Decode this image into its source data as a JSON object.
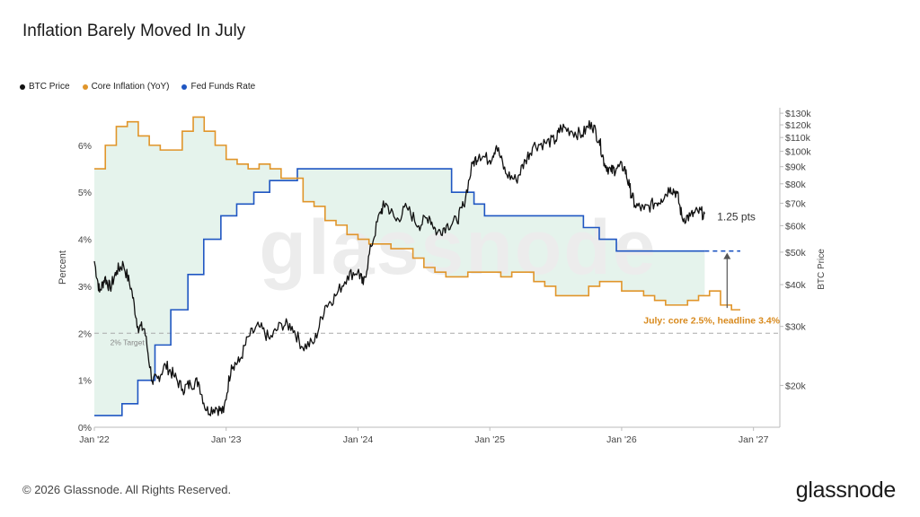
{
  "page": {
    "title": "Inflation Barely Moved In July",
    "footer": "© 2026 Glassnode. All Rights Reserved.",
    "brand": "glassnode",
    "watermark": "glassnode"
  },
  "chart_data": {
    "type": "line",
    "left_axis": {
      "label": "Percent",
      "ylim": [
        0,
        6.8
      ],
      "ticks": [
        0,
        1,
        2,
        3,
        4,
        5,
        6
      ],
      "tick_labels": [
        "0%",
        "1%",
        "2%",
        "3%",
        "4%",
        "5%",
        "6%"
      ]
    },
    "right_axis": {
      "label": "BTC Price",
      "scale": "log",
      "ylim": [
        15000,
        135000
      ],
      "ticks": [
        20000,
        30000,
        40000,
        50000,
        60000,
        70000,
        80000,
        90000,
        100000,
        110000,
        120000,
        130000
      ],
      "tick_labels": [
        "$20k",
        "$30k",
        "$40k",
        "$50k",
        "$60k",
        "$70k",
        "$80k",
        "$90k",
        "$100k",
        "$110k",
        "$120k",
        "$130k"
      ]
    },
    "x_axis": {
      "range": [
        2022.0,
        2027.2
      ],
      "ticks": [
        2022,
        2023,
        2024,
        2025,
        2026,
        2027
      ],
      "tick_labels": [
        "Jan '22",
        "Jan '23",
        "Jan '24",
        "Jan '25",
        "Jan '26",
        "Jan '27"
      ]
    },
    "series": [
      {
        "name": "BTC Price",
        "color": "#111111",
        "axis": "right",
        "points": [
          [
            2022.0,
            47000
          ],
          [
            2022.04,
            38000
          ],
          [
            2022.08,
            42000
          ],
          [
            2022.12,
            39000
          ],
          [
            2022.17,
            44000
          ],
          [
            2022.22,
            46000
          ],
          [
            2022.28,
            39000
          ],
          [
            2022.33,
            30000
          ],
          [
            2022.38,
            29500
          ],
          [
            2022.44,
            20500
          ],
          [
            2022.48,
            21000
          ],
          [
            2022.54,
            23000
          ],
          [
            2022.6,
            21500
          ],
          [
            2022.67,
            19500
          ],
          [
            2022.73,
            20200
          ],
          [
            2022.79,
            20500
          ],
          [
            2022.85,
            16800
          ],
          [
            2022.92,
            17200
          ],
          [
            2022.98,
            16600
          ],
          [
            2023.04,
            23000
          ],
          [
            2023.1,
            23500
          ],
          [
            2023.17,
            28000
          ],
          [
            2023.25,
            30000
          ],
          [
            2023.33,
            27500
          ],
          [
            2023.42,
            30500
          ],
          [
            2023.5,
            30000
          ],
          [
            2023.58,
            26000
          ],
          [
            2023.67,
            27000
          ],
          [
            2023.75,
            34500
          ],
          [
            2023.83,
            37000
          ],
          [
            2023.92,
            42500
          ],
          [
            2024.0,
            44000
          ],
          [
            2024.04,
            40000
          ],
          [
            2024.1,
            52000
          ],
          [
            2024.17,
            66000
          ],
          [
            2024.21,
            70000
          ],
          [
            2024.29,
            62000
          ],
          [
            2024.37,
            68000
          ],
          [
            2024.46,
            60000
          ],
          [
            2024.54,
            64000
          ],
          [
            2024.6,
            57000
          ],
          [
            2024.67,
            60000
          ],
          [
            2024.75,
            62000
          ],
          [
            2024.8,
            69000
          ],
          [
            2024.87,
            92000
          ],
          [
            2024.92,
            98000
          ],
          [
            2025.0,
            94000
          ],
          [
            2025.05,
            104000
          ],
          [
            2025.12,
            86000
          ],
          [
            2025.2,
            82000
          ],
          [
            2025.27,
            94000
          ],
          [
            2025.33,
            104000
          ],
          [
            2025.42,
            106000
          ],
          [
            2025.5,
            108000
          ],
          [
            2025.54,
            118000
          ],
          [
            2025.62,
            115000
          ],
          [
            2025.7,
            112000
          ],
          [
            2025.77,
            122000
          ],
          [
            2025.83,
            108000
          ],
          [
            2025.87,
            92000
          ],
          [
            2025.92,
            87000
          ],
          [
            2025.96,
            89000
          ],
          [
            2026.02,
            90000
          ],
          [
            2026.06,
            78000
          ],
          [
            2026.1,
            69000
          ],
          [
            2026.17,
            67000
          ],
          [
            2026.25,
            70000
          ],
          [
            2026.3,
            72000
          ],
          [
            2026.37,
            78000
          ],
          [
            2026.42,
            75000
          ],
          [
            2026.46,
            63000
          ],
          [
            2026.52,
            64000
          ],
          [
            2026.58,
            66000
          ],
          [
            2026.63,
            65000
          ]
        ]
      },
      {
        "name": "Core Inflation (YoY)",
        "color": "#e0952a",
        "axis": "left",
        "step_months": [
          "2021-12",
          5.5,
          6.0,
          6.4,
          6.5,
          6.2,
          6.0,
          5.9,
          5.9,
          6.3,
          6.6,
          6.3,
          6.0,
          5.7,
          5.6,
          5.5,
          5.6,
          5.5,
          5.3,
          5.3,
          4.8,
          4.7,
          4.4,
          4.3,
          4.1,
          4.0,
          3.9,
          3.9,
          3.8,
          3.8,
          3.6,
          3.4,
          3.3,
          3.2,
          3.2,
          3.3,
          3.3,
          3.3,
          3.2,
          3.3,
          3.3,
          3.1,
          3.0,
          2.8,
          2.8,
          2.8,
          3.0,
          3.1,
          3.1,
          2.9,
          2.9,
          2.8,
          2.7,
          2.6,
          2.6,
          2.7,
          2.8,
          2.9,
          2.6,
          2.5
        ]
      },
      {
        "name": "Fed Funds Rate",
        "color": "#1f56c2",
        "axis": "left",
        "steps": [
          [
            2022.0,
            0.25
          ],
          [
            2022.21,
            0.5
          ],
          [
            2022.33,
            1.0
          ],
          [
            2022.46,
            1.75
          ],
          [
            2022.58,
            2.5
          ],
          [
            2022.71,
            3.25
          ],
          [
            2022.83,
            4.0
          ],
          [
            2022.96,
            4.5
          ],
          [
            2023.08,
            4.75
          ],
          [
            2023.21,
            5.0
          ],
          [
            2023.33,
            5.25
          ],
          [
            2023.54,
            5.5
          ],
          [
            2024.71,
            5.0
          ],
          [
            2024.88,
            4.75
          ],
          [
            2024.96,
            4.5
          ],
          [
            2025.71,
            4.25
          ],
          [
            2025.83,
            4.0
          ],
          [
            2025.96,
            3.75
          ],
          [
            2026.63,
            3.75
          ]
        ]
      }
    ],
    "annotations": {
      "target_line_value": 2.0,
      "target_label": "2% Target",
      "gap_label": "1.25 pts",
      "july_label": "July: core 2.5%, headline 3.4%"
    },
    "legend_position": "top-left",
    "grid": false
  }
}
